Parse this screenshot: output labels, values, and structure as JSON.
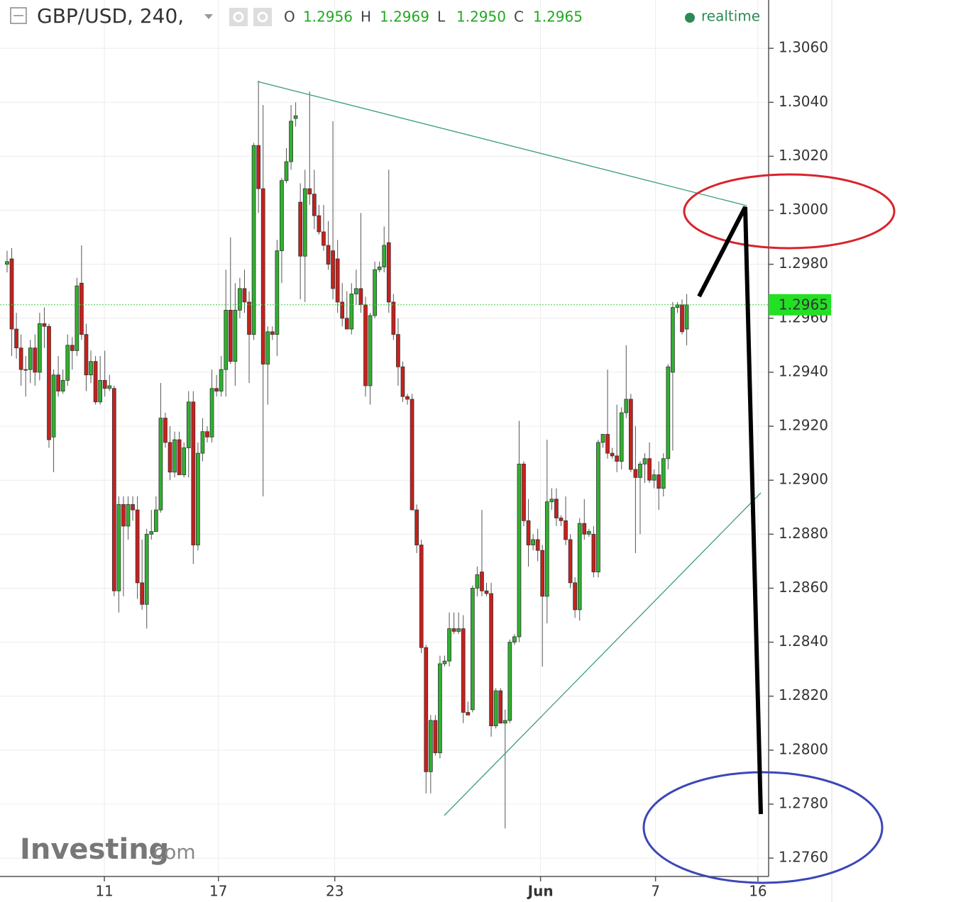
{
  "chart_data": {
    "type": "candlestick",
    "title": "GBP/USD, 240,",
    "ohlc": [
      {
        "label": "O",
        "value": "1.2956"
      },
      {
        "label": "H",
        "value": "1.2969"
      },
      {
        "label": "L",
        "value": "1.2950"
      },
      {
        "label": "C",
        "value": "1.2965"
      }
    ],
    "status": "realtime",
    "watermark": [
      "Investing",
      ".com"
    ],
    "up_color": "#2fb12f",
    "down_color": "#c8201c",
    "grid": true,
    "last_price": 1.2965,
    "xlim": [
      -1.52,
      163.6
    ],
    "xticks": [
      {
        "value": 20.9,
        "label": "11"
      },
      {
        "value": 45.4,
        "label": "17"
      },
      {
        "value": 70.4,
        "label": "23"
      },
      {
        "value": 114.6,
        "label": "Jun"
      },
      {
        "value": 139.3,
        "label": "7"
      },
      {
        "value": 161.3,
        "label": "16"
      }
    ],
    "ylim": [
      1.27532,
      1.30779
    ],
    "yticks": [
      {
        "value": 1.306,
        "label": "1.3060"
      },
      {
        "value": 1.304,
        "label": "1.3040"
      },
      {
        "value": 1.302,
        "label": "1.3020"
      },
      {
        "value": 1.3,
        "label": "1.3000"
      },
      {
        "value": 1.298,
        "label": "1.2980"
      },
      {
        "value": 1.296,
        "label": "1.2960"
      },
      {
        "value": 1.294,
        "label": "1.2940"
      },
      {
        "value": 1.292,
        "label": "1.2920"
      },
      {
        "value": 1.29,
        "label": "1.2900"
      },
      {
        "value": 1.288,
        "label": "1.2880"
      },
      {
        "value": 1.286,
        "label": "1.2860"
      },
      {
        "value": 1.284,
        "label": "1.2840"
      },
      {
        "value": 1.282,
        "label": "1.2820"
      },
      {
        "value": 1.28,
        "label": "1.2800"
      },
      {
        "value": 1.278,
        "label": "1.2780"
      },
      {
        "value": 1.276,
        "label": "1.2760"
      }
    ],
    "open": [
      1.298,
      1.2982,
      1.2956,
      1.2949,
      1.2941,
      1.2941,
      1.2949,
      1.294,
      1.2958,
      1.2957,
      1.2916,
      1.2939,
      1.2933,
      1.2937,
      1.295,
      1.2948,
      1.2973,
      1.2954,
      1.2939,
      1.2944,
      1.2929,
      1.2937,
      1.2934,
      1.2934,
      1.2859,
      1.2891,
      1.2883,
      1.2891,
      1.2889,
      1.2862,
      1.2854,
      1.288,
      1.2881,
      1.2889,
      1.2923,
      1.2914,
      1.2903,
      1.2915,
      1.2902,
      1.2912,
      1.2929,
      1.2876,
      1.291,
      1.2918,
      1.2916,
      1.2934,
      1.2933,
      1.2941,
      1.2963,
      1.2944,
      1.2963,
      1.2971,
      1.2966,
      1.2954,
      1.3024,
      1.3008,
      1.2943,
      1.2955,
      1.2954,
      1.2985,
      1.3011,
      1.3018,
      1.3034,
      1.3003,
      1.2983,
      1.3008,
      1.3006,
      1.2998,
      1.2992,
      1.2987,
      1.2985,
      1.2982,
      1.2966,
      1.296,
      1.2956,
      1.2969,
      1.2971,
      1.2965,
      1.2935,
      1.2961,
      1.2978,
      1.2979,
      1.2988,
      1.2966,
      1.2954,
      1.2942,
      1.2931,
      1.293,
      1.2889,
      1.2876,
      1.2838,
      1.2792,
      1.2811,
      1.2799,
      1.2832,
      1.2833,
      1.2845,
      1.2844,
      1.2845,
      1.2814,
      1.2815,
      1.286,
      1.2866,
      1.2859,
      1.2858,
      1.2809,
      1.2822,
      1.281,
      1.2811,
      1.284,
      1.2842,
      1.2906,
      1.2885,
      1.2876,
      1.2878,
      1.2874,
      1.2857,
      1.2892,
      1.2893,
      1.2886,
      1.2885,
      1.2878,
      1.2862,
      1.2852,
      1.2884,
      1.288,
      1.288,
      1.2866,
      1.2914,
      1.2917,
      1.291,
      1.2909,
      1.2907,
      1.2925,
      1.293,
      1.2904,
      1.2901,
      1.2906,
      1.2908,
      1.29,
      1.2902,
      1.2897,
      1.2908,
      1.294,
      1.2964,
      1.2965,
      1.2956
    ],
    "high": [
      1.2985,
      1.2986,
      1.2962,
      1.2954,
      1.2946,
      1.2952,
      1.2954,
      1.2962,
      1.2964,
      1.2958,
      1.2941,
      1.2946,
      1.2941,
      1.2954,
      1.2953,
      1.2975,
      1.2987,
      1.2958,
      1.2948,
      1.2946,
      1.2946,
      1.2948,
      1.2939,
      1.2935,
      1.2894,
      1.2894,
      1.2894,
      1.2894,
      1.2894,
      1.2878,
      1.2882,
      1.2889,
      1.2894,
      1.2936,
      1.2925,
      1.292,
      1.2918,
      1.2918,
      1.2914,
      1.2933,
      1.2933,
      1.2914,
      1.2923,
      1.292,
      1.2941,
      1.2939,
      1.2946,
      1.2978,
      1.299,
      1.2973,
      1.2975,
      1.2978,
      1.297,
      1.3025,
      1.3048,
      1.3039,
      1.2957,
      1.2957,
      1.2989,
      1.3012,
      1.3023,
      1.3039,
      1.304,
      1.301,
      1.3015,
      1.3044,
      1.3015,
      1.3002,
      1.3002,
      1.2996,
      1.3033,
      1.2989,
      1.2973,
      1.297,
      1.2973,
      1.2978,
      1.2999,
      1.2968,
      1.2962,
      1.2981,
      1.2981,
      1.2994,
      1.3015,
      1.2969,
      1.296,
      1.2944,
      1.2932,
      1.2932,
      1.2891,
      1.2878,
      1.2839,
      1.2813,
      1.2813,
      1.2835,
      1.2835,
      1.2851,
      1.2851,
      1.2851,
      1.285,
      1.2818,
      1.2861,
      1.2868,
      1.2889,
      1.2862,
      1.2862,
      1.2823,
      1.2823,
      1.2815,
      1.2841,
      1.2843,
      1.2922,
      1.2907,
      1.2893,
      1.288,
      1.2882,
      1.2876,
      1.2915,
      1.2897,
      1.2897,
      1.2887,
      1.2894,
      1.288,
      1.2864,
      1.2886,
      1.2893,
      1.2882,
      1.2883,
      1.2915,
      1.2917,
      1.2941,
      1.2912,
      1.2928,
      1.2927,
      1.295,
      1.2932,
      1.292,
      1.2907,
      1.291,
      1.2914,
      1.2904,
      1.2907,
      1.291,
      1.2943,
      1.2966,
      1.2966,
      1.2967,
      1.2969
    ],
    "low": [
      1.2977,
      1.2946,
      1.2945,
      1.2935,
      1.2931,
      1.2936,
      1.2935,
      1.2937,
      1.2949,
      1.2912,
      1.2903,
      1.2931,
      1.2932,
      1.2935,
      1.2941,
      1.2946,
      1.2952,
      1.2933,
      1.2936,
      1.2928,
      1.2928,
      1.2931,
      1.2933,
      1.2857,
      1.2851,
      1.2857,
      1.2878,
      1.2885,
      1.2856,
      1.2852,
      1.2845,
      1.2878,
      1.2881,
      1.2888,
      1.2912,
      1.29,
      1.2901,
      1.2902,
      1.2901,
      1.2901,
      1.2869,
      1.2874,
      1.2907,
      1.2914,
      1.2914,
      1.2931,
      1.2931,
      1.2931,
      1.2943,
      1.2935,
      1.296,
      1.2962,
      1.2936,
      1.2952,
      1.2999,
      1.2894,
      1.2928,
      1.2952,
      1.2946,
      1.2973,
      1.301,
      1.3015,
      1.3031,
      1.2967,
      1.2966,
      1.3002,
      1.2993,
      1.2991,
      1.2985,
      1.2978,
      1.2967,
      1.2962,
      1.2957,
      1.2956,
      1.2954,
      1.2965,
      1.2962,
      1.2931,
      1.2928,
      1.296,
      1.2977,
      1.2977,
      1.2962,
      1.2952,
      1.2935,
      1.2929,
      1.2928,
      1.2889,
      1.2873,
      1.2836,
      1.2784,
      1.2784,
      1.2798,
      1.2797,
      1.2831,
      1.2831,
      1.2843,
      1.2843,
      1.281,
      1.2813,
      1.2814,
      1.2857,
      1.2857,
      1.2857,
      1.2805,
      1.2808,
      1.281,
      1.2771,
      1.281,
      1.2839,
      1.284,
      1.2883,
      1.2868,
      1.2874,
      1.287,
      1.2831,
      1.2847,
      1.2889,
      1.2883,
      1.2883,
      1.2876,
      1.286,
      1.2849,
      1.2848,
      1.2878,
      1.2879,
      1.2864,
      1.2864,
      1.2912,
      1.2908,
      1.2908,
      1.2903,
      1.2904,
      1.2923,
      1.2903,
      1.2873,
      1.288,
      1.2899,
      1.2899,
      1.2897,
      1.2889,
      1.2894,
      1.2904,
      1.2911,
      1.2962,
      1.2954,
      1.295
    ],
    "close": [
      1.2981,
      1.2956,
      1.2949,
      1.2941,
      1.2941,
      1.2949,
      1.294,
      1.2958,
      1.2957,
      1.2915,
      1.2939,
      1.2933,
      1.2937,
      1.295,
      1.2948,
      1.2972,
      1.2954,
      1.2939,
      1.2944,
      1.2929,
      1.2937,
      1.2934,
      1.2935,
      1.2859,
      1.2891,
      1.2883,
      1.2891,
      1.2889,
      1.2862,
      1.2854,
      1.288,
      1.2881,
      1.2889,
      1.2923,
      1.2914,
      1.2903,
      1.2915,
      1.2902,
      1.2912,
      1.2929,
      1.2876,
      1.291,
      1.2918,
      1.2916,
      1.2934,
      1.2933,
      1.2941,
      1.2963,
      1.2944,
      1.2963,
      1.2971,
      1.2966,
      1.2954,
      1.3024,
      1.3008,
      1.2943,
      1.2955,
      1.2954,
      1.2985,
      1.3011,
      1.3018,
      1.3033,
      1.3035,
      1.2983,
      1.3008,
      1.3006,
      1.2998,
      1.2992,
      1.2987,
      1.298,
      1.2971,
      1.2966,
      1.296,
      1.2956,
      1.2969,
      1.2971,
      1.2965,
      1.2935,
      1.2961,
      1.2978,
      1.2979,
      1.2987,
      1.2966,
      1.2954,
      1.2942,
      1.2931,
      1.293,
      1.2889,
      1.2876,
      1.2838,
      1.2792,
      1.2811,
      1.2799,
      1.2832,
      1.2833,
      1.2845,
      1.2844,
      1.2845,
      1.2814,
      1.2813,
      1.286,
      1.2865,
      1.2859,
      1.2858,
      1.2809,
      1.2822,
      1.281,
      1.2811,
      1.284,
      1.2842,
      1.2906,
      1.2885,
      1.2876,
      1.2878,
      1.2874,
      1.2857,
      1.2892,
      1.2893,
      1.2886,
      1.2885,
      1.2878,
      1.2862,
      1.2852,
      1.2884,
      1.288,
      1.2881,
      1.2866,
      1.2914,
      1.2917,
      1.291,
      1.2909,
      1.2907,
      1.2925,
      1.293,
      1.2904,
      1.2901,
      1.2906,
      1.2908,
      1.29,
      1.2902,
      1.2897,
      1.2908,
      1.2942,
      1.2964,
      1.2965,
      1.2955,
      1.2965
    ]
  }
}
